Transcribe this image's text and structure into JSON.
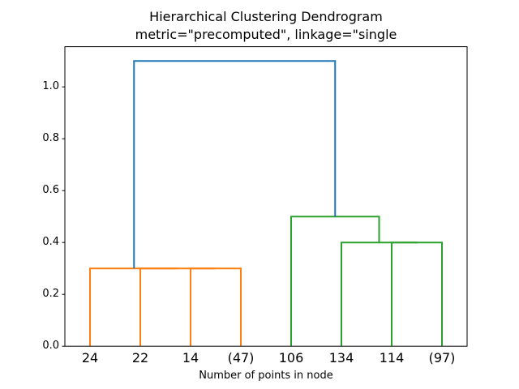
{
  "chart_data": {
    "type": "dendrogram",
    "title": "Hierarchical Clustering Dendrogram",
    "subtitle": "metric=\"precomputed\", linkage=\"single",
    "xlabel": "Number of points in node",
    "ylabel": "",
    "leaf_labels": [
      "24",
      "22",
      "14",
      "(47)",
      "106",
      "134",
      "114",
      "(97)"
    ],
    "leaf_x": [
      5,
      15,
      25,
      35,
      45,
      55,
      65,
      75
    ],
    "xlim": [
      0,
      80
    ],
    "ylim": [
      0,
      1.155
    ],
    "yticks": [
      0,
      0.2,
      0.4,
      0.6,
      0.8,
      1.0
    ],
    "ytick_labels": [
      "0.0",
      "0.2",
      "0.4",
      "0.6",
      "0.8",
      "1.0"
    ],
    "grid": false,
    "legend": null,
    "colors": {
      "above_threshold_link": "#1f77b4",
      "left_cluster_link": "#ff7f0e",
      "right_cluster_link": "#2ca02c",
      "axis": "#000000",
      "background": "#ffffff"
    },
    "merges": [
      {
        "children": [
          "14",
          "(47)"
        ],
        "height": 0.3,
        "cluster": "left"
      },
      {
        "children": [
          "22",
          "14+(47)"
        ],
        "height": 0.3,
        "cluster": "left"
      },
      {
        "children": [
          "24",
          "22+14+(47)"
        ],
        "height": 0.3,
        "cluster": "left"
      },
      {
        "children": [
          "114",
          "(97)"
        ],
        "height": 0.4,
        "cluster": "right"
      },
      {
        "children": [
          "134",
          "114+(97)"
        ],
        "height": 0.4,
        "cluster": "right"
      },
      {
        "children": [
          "106",
          "134+114+(97)"
        ],
        "height": 0.5,
        "cluster": "right"
      },
      {
        "children": [
          "left-cluster",
          "right-cluster"
        ],
        "height": 1.1,
        "cluster": "root"
      }
    ],
    "links": [
      {
        "color": "#ff7f0e",
        "x": [
          25,
          25,
          35,
          35
        ],
        "y": [
          0,
          0.3,
          0.3,
          0
        ]
      },
      {
        "color": "#ff7f0e",
        "x": [
          15,
          15,
          30,
          30
        ],
        "y": [
          0,
          0.3,
          0.3,
          0.3
        ]
      },
      {
        "color": "#ff7f0e",
        "x": [
          5,
          5,
          22.5,
          22.5
        ],
        "y": [
          0,
          0.3,
          0.3,
          0.3
        ]
      },
      {
        "color": "#2ca02c",
        "x": [
          65,
          65,
          75,
          75
        ],
        "y": [
          0,
          0.4,
          0.4,
          0
        ]
      },
      {
        "color": "#2ca02c",
        "x": [
          55,
          55,
          70,
          70
        ],
        "y": [
          0,
          0.4,
          0.4,
          0.4
        ]
      },
      {
        "color": "#2ca02c",
        "x": [
          45,
          45,
          62.5,
          62.5
        ],
        "y": [
          0,
          0.5,
          0.5,
          0.4
        ]
      },
      {
        "color": "#1f77b4",
        "x": [
          13.75,
          13.75,
          53.75,
          53.75
        ],
        "y": [
          0.3,
          1.1,
          1.1,
          0.5
        ]
      }
    ]
  }
}
